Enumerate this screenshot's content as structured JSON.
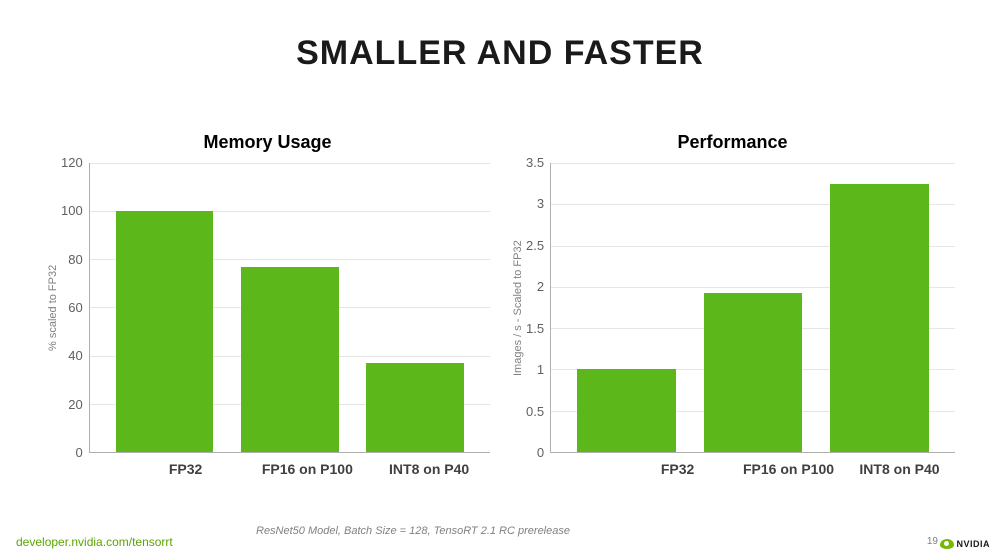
{
  "title": {
    "text": "SMALLER AND FASTER",
    "fontsize": 34,
    "color": "#1a1a1a"
  },
  "bar_color": "#5cb81a",
  "grid_color": "#e6e6e6",
  "axis_text_color": "#606060",
  "chart_title_fontsize": 18,
  "axis_label_fontsize": 11,
  "tick_fontsize": 13,
  "category_fontsize": 14,
  "bar_width_pct": 26,
  "charts": [
    {
      "title": "Memory Usage",
      "ylabel": "% scaled to FP32",
      "ymax": 120,
      "yticks": [
        "120",
        "100",
        "80",
        "60",
        "40",
        "20",
        "0"
      ],
      "categories": [
        "FP32",
        "FP16 on P100",
        "INT8 on P40"
      ],
      "values": [
        100,
        77,
        37
      ]
    },
    {
      "title": "Performance",
      "ylabel": "Images / s  - Scaled to FP32",
      "ymax": 3.5,
      "yticks": [
        "3.5",
        "3",
        "2.5",
        "2",
        "1.5",
        "1",
        "0.5",
        "0"
      ],
      "categories": [
        "FP32",
        "FP16 on P100",
        "INT8 on P40"
      ],
      "values": [
        1.0,
        1.92,
        3.25
      ]
    }
  ],
  "footnote": {
    "text": "ResNet50 Model, Batch Size = 128, TensoRT 2.1 RC prerelease",
    "fontsize": 11
  },
  "url": {
    "text": "developer.nvidia.com/tensorrt",
    "fontsize": 12
  },
  "page_number": "19",
  "logo": {
    "text": "NVIDIA",
    "color": "#1a1a1a",
    "accent": "#76b900",
    "fontsize": 9
  }
}
